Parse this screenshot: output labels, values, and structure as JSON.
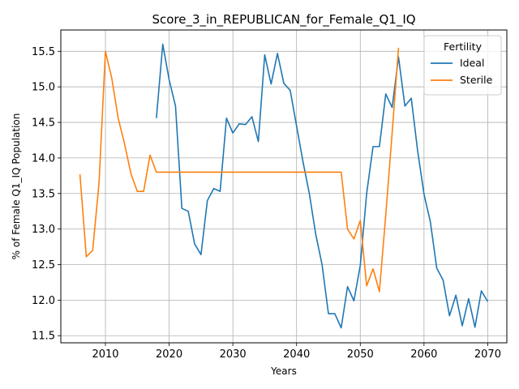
{
  "chart_data": {
    "type": "line",
    "title": "Score_3_in_REPUBLICAN_for_Female_Q1_IQ",
    "xlabel": "Years",
    "ylabel": "% of Female Q1_IQ Population",
    "xlim": [
      2003,
      2073
    ],
    "ylim": [
      11.4,
      15.8
    ],
    "xticks": [
      2010,
      2020,
      2030,
      2040,
      2050,
      2060,
      2070
    ],
    "yticks": [
      11.5,
      12.0,
      12.5,
      13.0,
      13.5,
      14.0,
      14.5,
      15.0,
      15.5
    ],
    "xtick_labels": [
      "2010",
      "2020",
      "2030",
      "2040",
      "2050",
      "2060",
      "2070"
    ],
    "ytick_labels": [
      "11.5",
      "12.0",
      "12.5",
      "13.0",
      "13.5",
      "14.0",
      "14.5",
      "15.0",
      "15.5"
    ],
    "grid": true,
    "legend": {
      "title": "Fertility",
      "position": "upper right"
    },
    "series": [
      {
        "name": "Ideal",
        "color": "#1f77b4",
        "x": [
          2018,
          2019,
          2020,
          2021,
          2022,
          2023,
          2024,
          2025,
          2026,
          2027,
          2028,
          2029,
          2030,
          2031,
          2032,
          2033,
          2034,
          2035,
          2036,
          2037,
          2038,
          2039,
          2040,
          2041,
          2042,
          2043,
          2044,
          2045,
          2046,
          2047,
          2048,
          2049,
          2050,
          2051,
          2052,
          2053,
          2054,
          2055,
          2056,
          2057,
          2058,
          2059,
          2060,
          2061,
          2062,
          2063,
          2064,
          2065,
          2066,
          2067,
          2068,
          2069,
          2070
        ],
        "values": [
          14.56,
          15.6,
          15.1,
          14.73,
          13.29,
          13.25,
          12.79,
          12.64,
          13.4,
          13.57,
          13.53,
          14.56,
          14.35,
          14.48,
          14.47,
          14.58,
          14.23,
          15.45,
          15.04,
          15.47,
          15.05,
          14.95,
          14.45,
          13.95,
          13.5,
          12.93,
          12.5,
          11.81,
          11.81,
          11.61,
          12.19,
          11.99,
          12.49,
          13.5,
          14.16,
          14.16,
          14.9,
          14.71,
          15.42,
          14.73,
          14.84,
          14.1,
          13.49,
          13.1,
          12.45,
          12.28,
          11.78,
          12.07,
          11.64,
          12.02,
          11.62,
          12.13,
          11.98
        ]
      },
      {
        "name": "Sterile",
        "color": "#ff7f0e",
        "x": [
          2006,
          2007,
          2008,
          2009,
          2010,
          2011,
          2012,
          2013,
          2014,
          2015,
          2016,
          2017,
          2018,
          2019,
          2020,
          2021,
          2022,
          2023,
          2024,
          2025,
          2026,
          2027,
          2028,
          2029,
          2030,
          2031,
          2032,
          2033,
          2034,
          2035,
          2036,
          2037,
          2038,
          2039,
          2040,
          2041,
          2042,
          2043,
          2044,
          2045,
          2046,
          2047,
          2048,
          2049,
          2050,
          2051,
          2052,
          2053,
          2054,
          2055,
          2056
        ],
        "values": [
          13.77,
          12.61,
          12.7,
          13.65,
          15.5,
          15.12,
          14.56,
          14.2,
          13.78,
          13.53,
          13.53,
          14.04,
          13.8,
          13.8,
          13.8,
          13.8,
          13.8,
          13.8,
          13.8,
          13.8,
          13.8,
          13.8,
          13.8,
          13.8,
          13.8,
          13.8,
          13.8,
          13.8,
          13.8,
          13.8,
          13.8,
          13.8,
          13.8,
          13.8,
          13.8,
          13.8,
          13.8,
          13.8,
          13.8,
          13.8,
          13.8,
          13.8,
          13.0,
          12.86,
          13.12,
          12.2,
          12.44,
          12.12,
          13.2,
          14.35,
          15.55
        ]
      }
    ]
  }
}
